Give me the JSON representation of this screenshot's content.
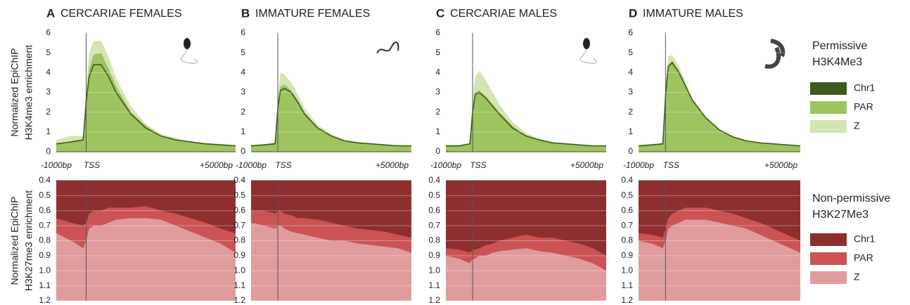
{
  "chart_data": [
    {
      "type": "area",
      "panel": "A",
      "title": "CERCARIAE FEMALES",
      "ylabel": [
        "Normalized EpiChIP",
        "H3K4me3 enrichment"
      ],
      "x": [
        -1000,
        -500,
        -100,
        0,
        100,
        250,
        500,
        750,
        1000,
        1500,
        2000,
        2500,
        3000,
        3500,
        4000,
        4500,
        5000
      ],
      "xlim": [
        -1000,
        5000
      ],
      "xticks": [
        {
          "value": -1000,
          "label": "-1000bp"
        },
        {
          "value": 0,
          "label": "TSS"
        },
        {
          "value": 5000,
          "label": "+5000bp"
        }
      ],
      "ylim": [
        0,
        6
      ],
      "yticks": [
        0,
        1,
        2,
        3,
        4,
        5,
        6
      ],
      "grid": true,
      "vlines": [
        0
      ],
      "series": [
        {
          "color": "#d3e5b1",
          "style": "area",
          "values": [
            0.6,
            0.8,
            0.8,
            3.2,
            5.0,
            5.6,
            5.6,
            4.8,
            3.7,
            2.3,
            1.4,
            0.9,
            0.7,
            0.5,
            0.45,
            0.4,
            0.35
          ]
        },
        {
          "color": "#9dc45f",
          "style": "area",
          "values": [
            0.4,
            0.5,
            0.6,
            2.8,
            4.2,
            4.9,
            5.0,
            4.2,
            3.3,
            2.0,
            1.3,
            0.8,
            0.6,
            0.5,
            0.4,
            0.35,
            0.3
          ]
        },
        {
          "color": "#3e5a1e",
          "style": "line",
          "values": [
            0.4,
            0.5,
            0.6,
            2.5,
            3.8,
            4.4,
            4.4,
            3.8,
            3.0,
            1.9,
            1.2,
            0.8,
            0.6,
            0.5,
            0.4,
            0.35,
            0.3
          ]
        }
      ]
    },
    {
      "type": "area",
      "panel": "B",
      "title": "IMMATURE FEMALES",
      "x": [
        -1000,
        -500,
        -100,
        0,
        100,
        250,
        500,
        750,
        1000,
        1500,
        2000,
        2500,
        3000,
        3500,
        4000,
        4500,
        5000
      ],
      "xlim": [
        -1000,
        5000
      ],
      "xticks": [
        {
          "value": -1000,
          "label": "-1000bp"
        },
        {
          "value": 0,
          "label": "TSS"
        },
        {
          "value": 5000,
          "label": "+5000bp"
        }
      ],
      "ylim": [
        0,
        6
      ],
      "yticks": [
        0,
        1,
        2,
        3,
        4,
        5,
        6
      ],
      "grid": true,
      "vlines": [
        0
      ],
      "series": [
        {
          "color": "#d3e5b1",
          "style": "area",
          "values": [
            0.35,
            0.4,
            0.5,
            2.8,
            4.0,
            3.9,
            3.5,
            2.9,
            2.2,
            1.35,
            0.9,
            0.6,
            0.5,
            0.4,
            0.35,
            0.3,
            0.3
          ]
        },
        {
          "color": "#9dc45f",
          "style": "area",
          "values": [
            0.3,
            0.35,
            0.45,
            2.4,
            3.3,
            3.4,
            3.1,
            2.6,
            2.0,
            1.2,
            0.8,
            0.55,
            0.45,
            0.4,
            0.35,
            0.3,
            0.3
          ]
        },
        {
          "color": "#3e5a1e",
          "style": "line",
          "values": [
            0.3,
            0.35,
            0.4,
            2.2,
            3.1,
            3.2,
            3.0,
            2.5,
            1.9,
            1.2,
            0.8,
            0.55,
            0.45,
            0.4,
            0.35,
            0.3,
            0.3
          ]
        }
      ]
    },
    {
      "type": "area",
      "panel": "C",
      "title": "CERCARIAE MALES",
      "x": [
        -1000,
        -500,
        -100,
        0,
        100,
        250,
        500,
        750,
        1000,
        1500,
        2000,
        2500,
        3000,
        3500,
        4000,
        4500,
        5000
      ],
      "xlim": [
        -1000,
        5000
      ],
      "xticks": [
        {
          "value": -1000,
          "label": "-1000bp"
        },
        {
          "value": 0,
          "label": "TSS"
        },
        {
          "value": 5000,
          "label": "+5000bp"
        }
      ],
      "ylim": [
        0,
        6
      ],
      "yticks": [
        0,
        1,
        2,
        3,
        4,
        5,
        6
      ],
      "grid": true,
      "vlines": [
        0
      ],
      "series": [
        {
          "color": "#d3e5b1",
          "style": "area",
          "values": [
            0.35,
            0.35,
            0.45,
            2.6,
            3.8,
            4.1,
            3.6,
            3.0,
            2.4,
            1.5,
            0.95,
            0.65,
            0.5,
            0.4,
            0.35,
            0.3,
            0.3
          ]
        },
        {
          "color": "#9dc45f",
          "style": "area",
          "values": [
            0.3,
            0.3,
            0.4,
            2.1,
            3.0,
            3.1,
            2.8,
            2.4,
            2.0,
            1.3,
            0.8,
            0.6,
            0.45,
            0.4,
            0.35,
            0.3,
            0.3
          ]
        },
        {
          "color": "#3e5a1e",
          "style": "line",
          "values": [
            0.3,
            0.3,
            0.4,
            2.0,
            2.9,
            3.0,
            2.7,
            2.3,
            1.9,
            1.2,
            0.8,
            0.6,
            0.45,
            0.4,
            0.35,
            0.3,
            0.3
          ]
        }
      ]
    },
    {
      "type": "area",
      "panel": "D",
      "title": "IMMATURE MALES",
      "x": [
        -1000,
        -500,
        -100,
        0,
        100,
        250,
        500,
        750,
        1000,
        1500,
        2000,
        2500,
        3000,
        3500,
        4000,
        4500,
        5000
      ],
      "xlim": [
        -1000,
        5000
      ],
      "xticks": [
        {
          "value": -1000,
          "label": "-1000bp"
        },
        {
          "value": 0,
          "label": "TSS"
        },
        {
          "value": 5000,
          "label": "+5000bp"
        }
      ],
      "ylim": [
        0,
        6
      ],
      "yticks": [
        0,
        1,
        2,
        3,
        4,
        5,
        6
      ],
      "grid": true,
      "vlines": [
        0
      ],
      "series": [
        {
          "color": "#d3e5b1",
          "style": "area",
          "values": [
            0.35,
            0.4,
            0.45,
            3.2,
            4.8,
            4.9,
            4.3,
            3.5,
            2.7,
            1.8,
            1.15,
            0.8,
            0.6,
            0.45,
            0.4,
            0.35,
            0.3
          ]
        },
        {
          "color": "#9dc45f",
          "style": "area",
          "values": [
            0.3,
            0.35,
            0.4,
            2.9,
            4.4,
            4.6,
            4.1,
            3.3,
            2.6,
            1.7,
            1.1,
            0.75,
            0.55,
            0.45,
            0.4,
            0.35,
            0.3
          ]
        },
        {
          "color": "#3e5a1e",
          "style": "line",
          "values": [
            0.3,
            0.35,
            0.4,
            2.8,
            4.3,
            4.5,
            4.0,
            3.3,
            2.6,
            1.7,
            1.1,
            0.75,
            0.55,
            0.45,
            0.4,
            0.35,
            0.3
          ]
        }
      ]
    },
    {
      "type": "area",
      "ylabel": [
        "Normalized EpiChIP",
        "H3K27me3 enrichment"
      ],
      "x": [
        -1000,
        -500,
        -100,
        0,
        100,
        250,
        500,
        750,
        1000,
        1500,
        2000,
        2500,
        3000,
        3500,
        4000,
        4500,
        5000
      ],
      "xlim": [
        -1000,
        5000
      ],
      "ylim": [
        0.4,
        1.2
      ],
      "inverted": true,
      "yticks": [
        0.4,
        0.5,
        0.6,
        0.7,
        0.8,
        0.9,
        {
          "value": 1,
          "label": "1.0"
        },
        1.1,
        1.2
      ],
      "grid": true,
      "vlines": [
        0
      ],
      "series": [
        {
          "color": "#e09c9c",
          "style": "area",
          "values": [
            1.2,
            1.2,
            1.2,
            1.2,
            1.2,
            1.2,
            1.2,
            1.2,
            1.2,
            1.2,
            1.2,
            1.2,
            1.2,
            1.2,
            1.2,
            1.2,
            1.2
          ]
        },
        {
          "color": "#cc5353",
          "style": "area",
          "values": [
            0.75,
            0.8,
            0.85,
            0.8,
            0.72,
            0.7,
            0.7,
            0.68,
            0.66,
            0.65,
            0.65,
            0.66,
            0.7,
            0.74,
            0.78,
            0.82,
            0.88
          ]
        },
        {
          "color": "#8e2f2f",
          "style": "area",
          "values": [
            0.65,
            0.68,
            0.7,
            0.68,
            0.62,
            0.6,
            0.6,
            0.58,
            0.58,
            0.58,
            0.57,
            0.6,
            0.62,
            0.65,
            0.68,
            0.72,
            0.75
          ]
        }
      ]
    },
    {
      "type": "area",
      "x": [
        -1000,
        -500,
        -100,
        0,
        100,
        250,
        500,
        750,
        1000,
        1500,
        2000,
        2500,
        3000,
        3500,
        4000,
        4500,
        5000
      ],
      "xlim": [
        -1000,
        5000
      ],
      "ylim": [
        0.4,
        1.2
      ],
      "inverted": true,
      "yticks": [
        0.4,
        0.5,
        0.6,
        0.7,
        0.8,
        0.9,
        {
          "value": 1,
          "label": "1.0"
        },
        1.1,
        1.2
      ],
      "grid": true,
      "vlines": [
        0
      ],
      "series": [
        {
          "color": "#e09c9c",
          "style": "area",
          "values": [
            1.2,
            1.2,
            1.2,
            1.2,
            1.2,
            1.2,
            1.2,
            1.2,
            1.2,
            1.2,
            1.2,
            1.2,
            1.2,
            1.2,
            1.2,
            1.2,
            1.2
          ]
        },
        {
          "color": "#cc5353",
          "style": "area",
          "values": [
            0.68,
            0.7,
            0.72,
            0.7,
            0.7,
            0.72,
            0.74,
            0.75,
            0.76,
            0.78,
            0.8,
            0.8,
            0.82,
            0.83,
            0.84,
            0.85,
            0.88
          ]
        },
        {
          "color": "#8e2f2f",
          "style": "area",
          "values": [
            0.6,
            0.6,
            0.62,
            0.6,
            0.6,
            0.62,
            0.63,
            0.65,
            0.65,
            0.66,
            0.68,
            0.7,
            0.72,
            0.73,
            0.74,
            0.76,
            0.78
          ]
        }
      ]
    },
    {
      "type": "area",
      "x": [
        -1000,
        -500,
        -100,
        0,
        100,
        250,
        500,
        750,
        1000,
        1500,
        2000,
        2500,
        3000,
        3500,
        4000,
        4500,
        5000
      ],
      "xlim": [
        -1000,
        5000
      ],
      "ylim": [
        0.4,
        1.2
      ],
      "inverted": true,
      "yticks": [
        0.4,
        0.5,
        0.6,
        0.7,
        0.8,
        0.9,
        {
          "value": 1,
          "label": "1.0"
        },
        1.1,
        1.2
      ],
      "grid": true,
      "vlines": [
        0
      ],
      "series": [
        {
          "color": "#e09c9c",
          "style": "area",
          "values": [
            1.2,
            1.2,
            1.2,
            1.2,
            1.2,
            1.2,
            1.2,
            1.2,
            1.2,
            1.2,
            1.2,
            1.2,
            1.2,
            1.2,
            1.2,
            1.2,
            1.2
          ]
        },
        {
          "color": "#cc5353",
          "style": "area",
          "values": [
            0.9,
            0.92,
            0.95,
            0.92,
            0.92,
            0.9,
            0.9,
            0.88,
            0.87,
            0.86,
            0.85,
            0.87,
            0.88,
            0.9,
            0.92,
            0.95,
            1.0
          ]
        },
        {
          "color": "#8e2f2f",
          "style": "area",
          "values": [
            0.85,
            0.86,
            0.88,
            0.86,
            0.86,
            0.85,
            0.83,
            0.82,
            0.8,
            0.78,
            0.76,
            0.78,
            0.78,
            0.8,
            0.82,
            0.85,
            0.9
          ]
        }
      ]
    },
    {
      "type": "area",
      "x": [
        -1000,
        -500,
        -100,
        0,
        100,
        250,
        500,
        750,
        1000,
        1500,
        2000,
        2500,
        3000,
        3500,
        4000,
        4500,
        5000
      ],
      "xlim": [
        -1000,
        5000
      ],
      "ylim": [
        0.4,
        1.2
      ],
      "inverted": true,
      "yticks": [
        0.4,
        0.5,
        0.6,
        0.7,
        0.8,
        0.9,
        {
          "value": 1,
          "label": "1.0"
        },
        1.1,
        1.2
      ],
      "grid": true,
      "vlines": [
        0
      ],
      "series": [
        {
          "color": "#e09c9c",
          "style": "area",
          "values": [
            1.2,
            1.2,
            1.2,
            1.2,
            1.2,
            1.2,
            1.2,
            1.2,
            1.2,
            1.2,
            1.2,
            1.2,
            1.2,
            1.2,
            1.2,
            1.2,
            1.2
          ]
        },
        {
          "color": "#cc5353",
          "style": "area",
          "values": [
            0.8,
            0.82,
            0.85,
            0.8,
            0.72,
            0.7,
            0.68,
            0.66,
            0.66,
            0.66,
            0.68,
            0.7,
            0.72,
            0.76,
            0.8,
            0.84,
            0.88
          ]
        },
        {
          "color": "#8e2f2f",
          "style": "area",
          "values": [
            0.75,
            0.76,
            0.78,
            0.72,
            0.65,
            0.62,
            0.6,
            0.58,
            0.58,
            0.58,
            0.6,
            0.62,
            0.65,
            0.68,
            0.72,
            0.76,
            0.8
          ]
        }
      ]
    }
  ],
  "legends": [
    {
      "title": [
        "Permissive",
        "H3K4Me3"
      ],
      "color": "#5f8a2e",
      "items": [
        {
          "name": "Chr1",
          "color": "#3e5a1e"
        },
        {
          "name": "PAR",
          "color": "#9dc45f"
        },
        {
          "name": "Z",
          "color": "#d3e5b1"
        }
      ]
    },
    {
      "title": [
        "Non-permissive",
        "H3K27Me3"
      ],
      "color": "#b84a4a",
      "items": [
        {
          "name": "Chr1",
          "color": "#8e2f2f"
        },
        {
          "name": "PAR",
          "color": "#cc5353"
        },
        {
          "name": "Z",
          "color": "#e09c9c"
        }
      ]
    }
  ]
}
